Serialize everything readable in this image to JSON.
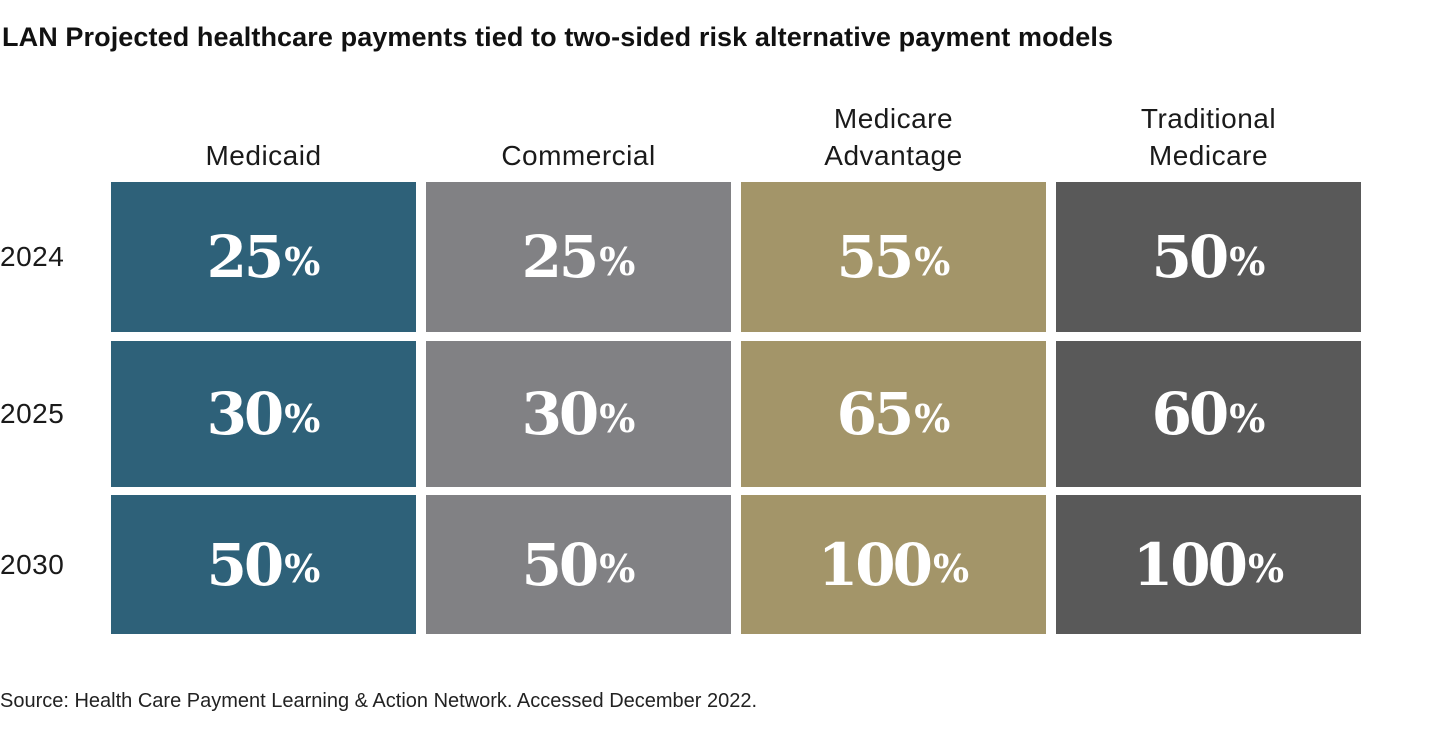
{
  "title": "LAN Projected healthcare payments tied to two-sided risk alternative payment models",
  "source": "Source: Health Care Payment Learning & Action Network. Accessed December 2022.",
  "chart_data": {
    "type": "table",
    "title": "LAN Projected healthcare payments tied to two-sided risk alternative payment models",
    "columns": [
      "Medicaid",
      "Commercial",
      "Medicare\nAdvantage",
      "Traditional\nMedicare"
    ],
    "rows": [
      "2024",
      "2025",
      "2030"
    ],
    "percent_symbol": "%",
    "values": [
      [
        25,
        25,
        55,
        50
      ],
      [
        30,
        30,
        65,
        60
      ],
      [
        50,
        50,
        100,
        100
      ]
    ],
    "colors": [
      "#2e6179",
      "#818184",
      "#a39569",
      "#595959"
    ]
  }
}
